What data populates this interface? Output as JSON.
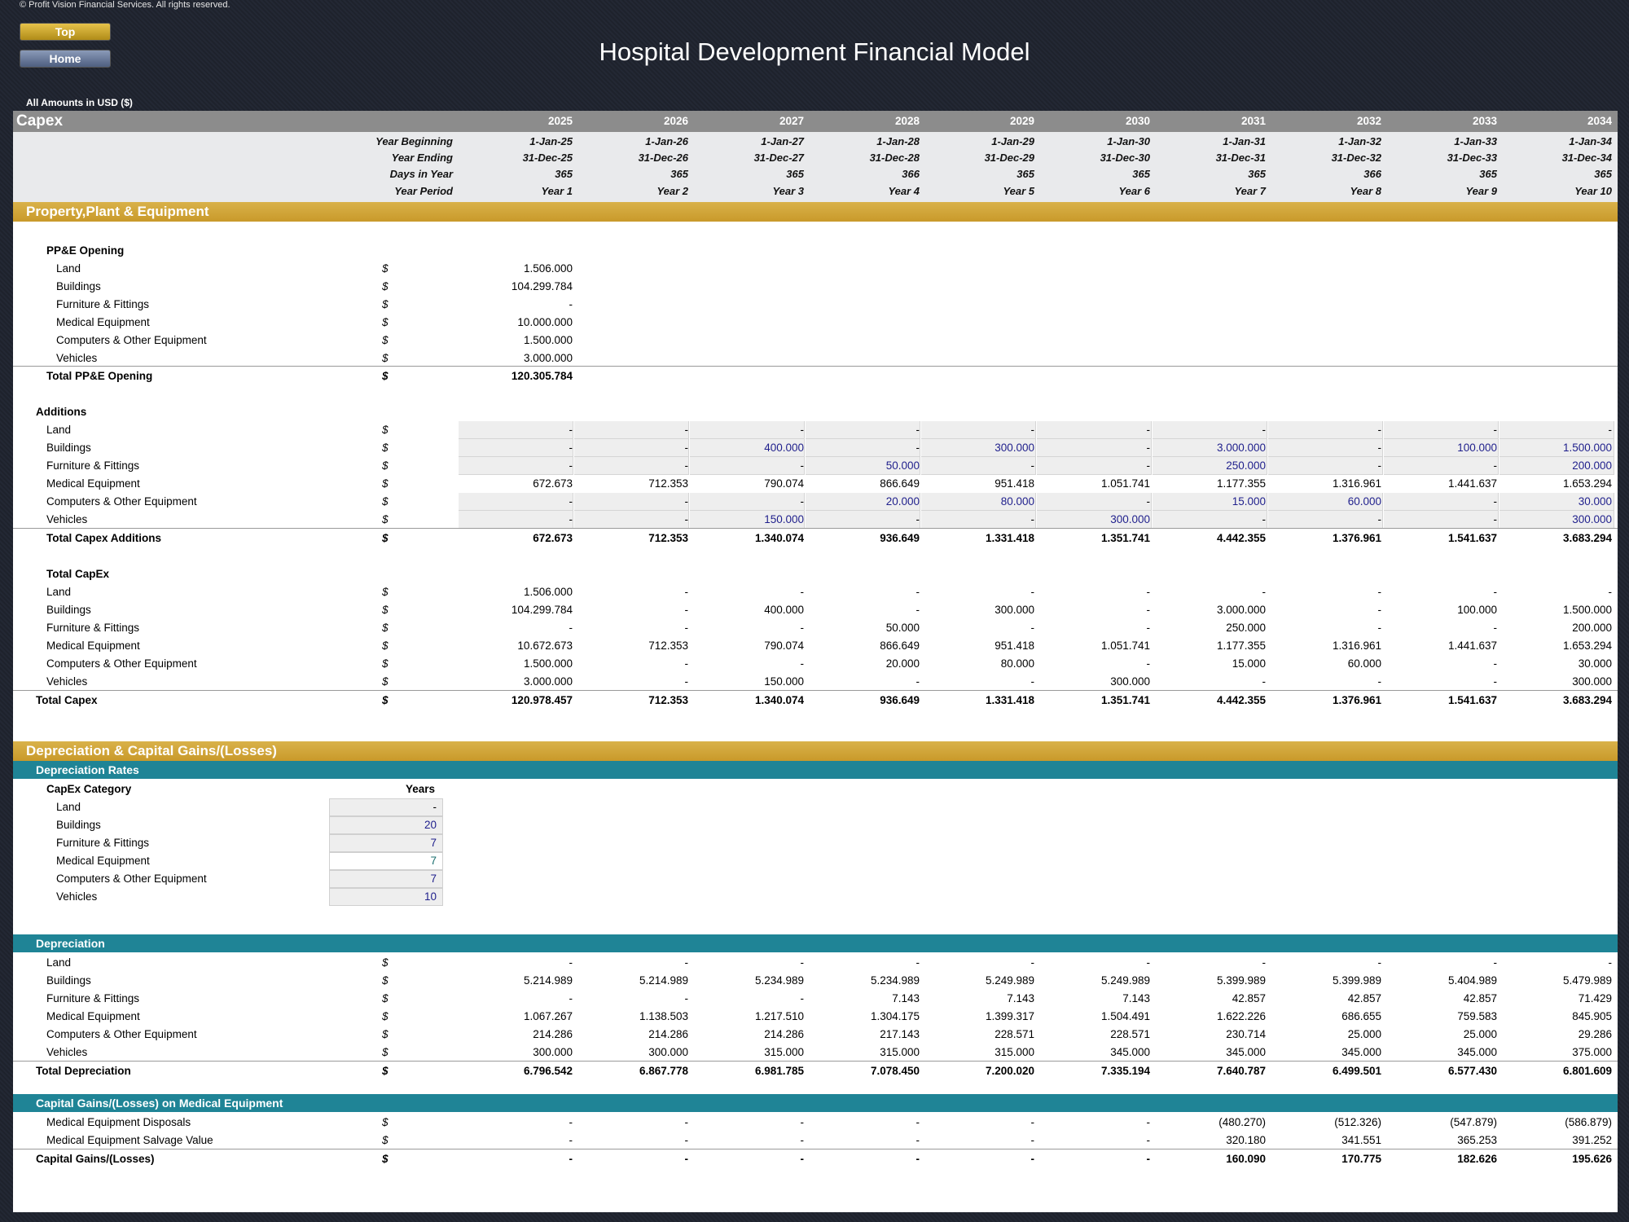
{
  "copyright": "© Profit Vision Financial Services. All rights reserved.",
  "nav": {
    "top": "Top",
    "home": "Home"
  },
  "title": "Hospital Development Financial Model",
  "amounts_note": "All Amounts in  USD ($)",
  "sheet_title": "Capex",
  "currency_symbol": "$",
  "years": [
    "2025",
    "2026",
    "2027",
    "2028",
    "2029",
    "2030",
    "2031",
    "2032",
    "2033",
    "2034"
  ],
  "meta": [
    {
      "label": "Year Beginning",
      "values": [
        "1-Jan-25",
        "1-Jan-26",
        "1-Jan-27",
        "1-Jan-28",
        "1-Jan-29",
        "1-Jan-30",
        "1-Jan-31",
        "1-Jan-32",
        "1-Jan-33",
        "1-Jan-34"
      ]
    },
    {
      "label": "Year Ending",
      "values": [
        "31-Dec-25",
        "31-Dec-26",
        "31-Dec-27",
        "31-Dec-28",
        "31-Dec-29",
        "31-Dec-30",
        "31-Dec-31",
        "31-Dec-32",
        "31-Dec-33",
        "31-Dec-34"
      ]
    },
    {
      "label": "Days in Year",
      "values": [
        "365",
        "365",
        "365",
        "366",
        "365",
        "365",
        "365",
        "366",
        "365",
        "365"
      ]
    },
    {
      "label": "Year Period",
      "values": [
        "Year 1",
        "Year 2",
        "Year 3",
        "Year 4",
        "Year 5",
        "Year 6",
        "Year 7",
        "Year 8",
        "Year 9",
        "Year 10"
      ]
    }
  ],
  "ppe": {
    "section_title": "Property,Plant & Equipment",
    "opening_title": "PP&E Opening",
    "opening_rows": [
      {
        "label": "Land",
        "value": "1.506.000"
      },
      {
        "label": "Buildings",
        "value": "104.299.784"
      },
      {
        "label": "Furniture & Fittings",
        "value": "-"
      },
      {
        "label": "Medical Equipment",
        "value": "10.000.000"
      },
      {
        "label": "Computers & Other Equipment",
        "value": "1.500.000"
      },
      {
        "label": "Vehicles",
        "value": "3.000.000"
      }
    ],
    "opening_total": {
      "label": "Total PP&E Opening",
      "value": "120.305.784"
    },
    "additions_title": "Additions",
    "additions_rows": [
      {
        "label": "Land",
        "values": [
          "-",
          "-",
          "-",
          "-",
          "-",
          "-",
          "-",
          "-",
          "-",
          "-"
        ]
      },
      {
        "label": "Buildings",
        "values": [
          "-",
          "-",
          "400.000",
          "-",
          "300.000",
          "-",
          "3.000.000",
          "-",
          "100.000",
          "1.500.000"
        ]
      },
      {
        "label": "Furniture & Fittings",
        "values": [
          "-",
          "-",
          "-",
          "50.000",
          "-",
          "-",
          "250.000",
          "-",
          "-",
          "200.000"
        ]
      },
      {
        "label": "Medical Equipment",
        "values": [
          "672.673",
          "712.353",
          "790.074",
          "866.649",
          "951.418",
          "1.051.741",
          "1.177.355",
          "1.316.961",
          "1.441.637",
          "1.653.294"
        ]
      },
      {
        "label": "Computers & Other Equipment",
        "values": [
          "-",
          "-",
          "-",
          "20.000",
          "80.000",
          "-",
          "15.000",
          "60.000",
          "-",
          "30.000"
        ]
      },
      {
        "label": "Vehicles",
        "values": [
          "-",
          "-",
          "150.000",
          "-",
          "-",
          "300.000",
          "-",
          "-",
          "-",
          "300.000"
        ]
      }
    ],
    "additions_total": {
      "label": "Total Capex Additions",
      "values": [
        "672.673",
        "712.353",
        "1.340.074",
        "936.649",
        "1.331.418",
        "1.351.741",
        "4.442.355",
        "1.376.961",
        "1.541.637",
        "3.683.294"
      ]
    },
    "capex_title": "Total CapEx",
    "capex_rows": [
      {
        "label": "Land",
        "values": [
          "1.506.000",
          "-",
          "-",
          "-",
          "-",
          "-",
          "-",
          "-",
          "-",
          "-"
        ]
      },
      {
        "label": "Buildings",
        "values": [
          "104.299.784",
          "-",
          "400.000",
          "-",
          "300.000",
          "-",
          "3.000.000",
          "-",
          "100.000",
          "1.500.000"
        ]
      },
      {
        "label": "Furniture & Fittings",
        "values": [
          "-",
          "-",
          "-",
          "50.000",
          "-",
          "-",
          "250.000",
          "-",
          "-",
          "200.000"
        ]
      },
      {
        "label": "Medical Equipment",
        "values": [
          "10.672.673",
          "712.353",
          "790.074",
          "866.649",
          "951.418",
          "1.051.741",
          "1.177.355",
          "1.316.961",
          "1.441.637",
          "1.653.294"
        ]
      },
      {
        "label": "Computers & Other Equipment",
        "values": [
          "1.500.000",
          "-",
          "-",
          "20.000",
          "80.000",
          "-",
          "15.000",
          "60.000",
          "-",
          "30.000"
        ]
      },
      {
        "label": "Vehicles",
        "values": [
          "3.000.000",
          "-",
          "150.000",
          "-",
          "-",
          "300.000",
          "-",
          "-",
          "-",
          "300.000"
        ]
      }
    ],
    "capex_total": {
      "label": "Total Capex",
      "values": [
        "120.978.457",
        "712.353",
        "1.340.074",
        "936.649",
        "1.331.418",
        "1.351.741",
        "4.442.355",
        "1.376.961",
        "1.541.637",
        "3.683.294"
      ]
    }
  },
  "dep": {
    "section_title": "Depreciation & Capital Gains/(Losses)",
    "rates_title": "Depreciation Rates",
    "category_header": "CapEx Category",
    "years_header": "Years",
    "rates": [
      {
        "label": "Land",
        "value": "-"
      },
      {
        "label": "Buildings",
        "value": "20"
      },
      {
        "label": "Furniture & Fittings",
        "value": "7"
      },
      {
        "label": "Medical Equipment",
        "value": "7"
      },
      {
        "label": "Computers & Other Equipment",
        "value": "7"
      },
      {
        "label": "Vehicles",
        "value": "10"
      }
    ],
    "depreciation_title": "Depreciation",
    "rows": [
      {
        "label": "Land",
        "values": [
          "-",
          "-",
          "-",
          "-",
          "-",
          "-",
          "-",
          "-",
          "-",
          "-"
        ]
      },
      {
        "label": "Buildings",
        "values": [
          "5.214.989",
          "5.214.989",
          "5.234.989",
          "5.234.989",
          "5.249.989",
          "5.249.989",
          "5.399.989",
          "5.399.989",
          "5.404.989",
          "5.479.989"
        ]
      },
      {
        "label": "Furniture & Fittings",
        "values": [
          "-",
          "-",
          "-",
          "7.143",
          "7.143",
          "7.143",
          "42.857",
          "42.857",
          "42.857",
          "71.429"
        ]
      },
      {
        "label": "Medical Equipment",
        "values": [
          "1.067.267",
          "1.138.503",
          "1.217.510",
          "1.304.175",
          "1.399.317",
          "1.504.491",
          "1.622.226",
          "686.655",
          "759.583",
          "845.905"
        ]
      },
      {
        "label": "Computers & Other Equipment",
        "values": [
          "214.286",
          "214.286",
          "214.286",
          "217.143",
          "228.571",
          "228.571",
          "230.714",
          "25.000",
          "25.000",
          "29.286"
        ]
      },
      {
        "label": "Vehicles",
        "values": [
          "300.000",
          "300.000",
          "315.000",
          "315.000",
          "315.000",
          "345.000",
          "345.000",
          "345.000",
          "345.000",
          "375.000"
        ]
      }
    ],
    "total": {
      "label": "Total Depreciation",
      "values": [
        "6.796.542",
        "6.867.778",
        "6.981.785",
        "7.078.450",
        "7.200.020",
        "7.335.194",
        "7.640.787",
        "6.499.501",
        "6.577.430",
        "6.801.609"
      ]
    },
    "gains_title": "Capital Gains/(Losses) on Medical Equipment",
    "gains_rows": [
      {
        "label": "Medical Equipment Disposals",
        "values": [
          "-",
          "-",
          "-",
          "-",
          "-",
          "-",
          "(480.270)",
          "(512.326)",
          "(547.879)",
          "(586.879)"
        ]
      },
      {
        "label": "Medical Equipment Salvage Value",
        "values": [
          "-",
          "-",
          "-",
          "-",
          "-",
          "-",
          "320.180",
          "341.551",
          "365.253",
          "391.252"
        ]
      }
    ],
    "gains_total": {
      "label": "Capital Gains/(Losses)",
      "values": [
        "-",
        "-",
        "-",
        "-",
        "-",
        "-",
        "160.090",
        "170.775",
        "182.626",
        "195.626"
      ]
    }
  }
}
